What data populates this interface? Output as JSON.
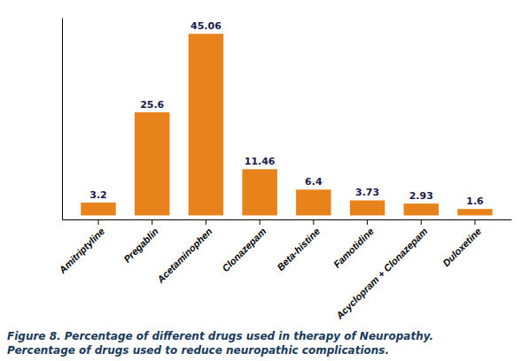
{
  "chart_data": {
    "type": "bar",
    "categories": [
      "Amitriptyline",
      "Pregablin",
      "Acetaminophen",
      "Clonazepam",
      "Beta-histine",
      "Famotidine",
      "Acyclopram + Clonazepam",
      "Duloxetine"
    ],
    "values": [
      3.2,
      25.6,
      45.06,
      11.46,
      6.4,
      3.73,
      2.93,
      1.6
    ],
    "color": "#E8821A",
    "ylim": [
      -1.0,
      49.06
    ],
    "data_labels": true,
    "tick_labels": "x",
    "grid": false,
    "annotations": [
      "Figure 8. Percentage of different drugs used in therapy of Neuropathy.",
      "Percentage of drugs used to reduce neuropathic complications."
    ]
  }
}
